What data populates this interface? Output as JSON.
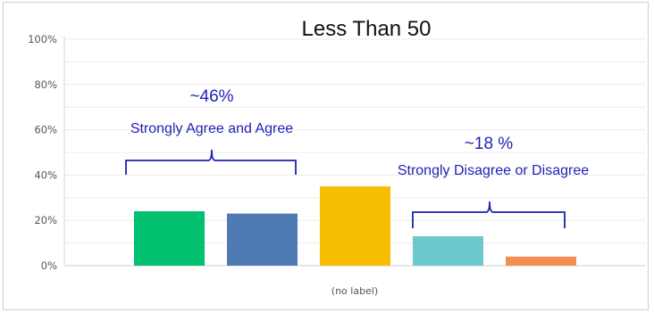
{
  "chart_data": {
    "type": "bar",
    "title": "Less Than 50",
    "xlabel": "",
    "ylabel": "",
    "x_tick_label": "(no label)",
    "ylim": [
      0,
      100
    ],
    "y_ticks": [
      "0%",
      "20%",
      "40%",
      "60%",
      "80%",
      "100%"
    ],
    "grid": true,
    "series": [
      {
        "values": [
          24,
          23,
          35,
          13,
          4
        ]
      }
    ],
    "colors": [
      "#00bf6f",
      "#4f7ab4",
      "#f6be00",
      "#6bc8cd",
      "#f38e55"
    ],
    "annotations": [
      {
        "value": "~46%",
        "text": "Strongly Agree and Agree"
      },
      {
        "value": "~18 %",
        "text": "Strongly Disagree or Disagree"
      }
    ]
  }
}
